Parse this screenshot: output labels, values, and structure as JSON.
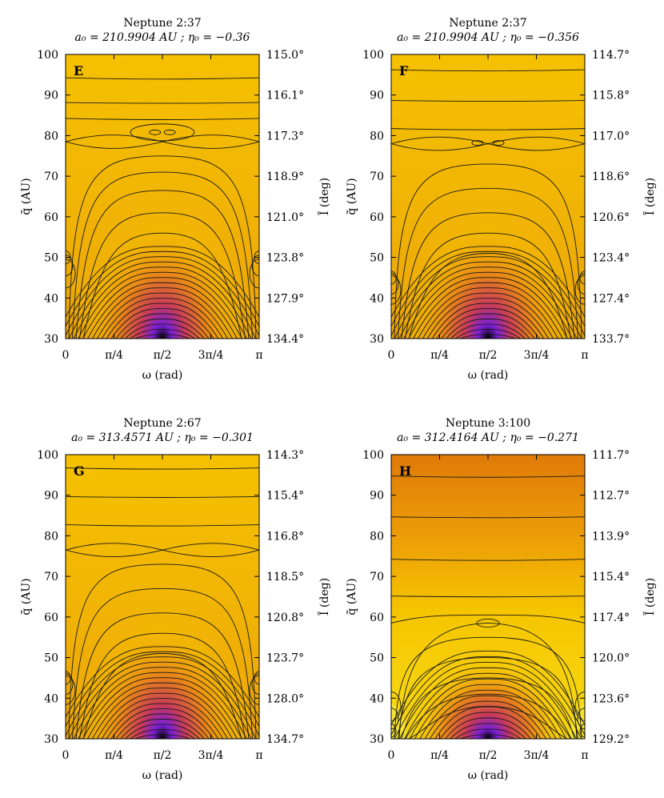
{
  "chart_data": [
    {
      "type": "heatmap",
      "panel_letter": "E",
      "title": "Neptune 2:37",
      "subtitle": "a₀ = 210.9904 AU ; η₀ = −0.36",
      "xlabel": "ω (rad)",
      "ylabel": "q̃ (AU)",
      "ylabel_right": "Ĩ (deg)",
      "xlim": [
        0,
        3.1416
      ],
      "ylim": [
        30,
        100
      ],
      "x_ticks": [
        0,
        0.7854,
        1.5708,
        2.3562,
        3.1416
      ],
      "x_tick_labels": [
        "0",
        "π/4",
        "π/2",
        "3π/4",
        "π"
      ],
      "y_ticks": [
        30,
        40,
        50,
        60,
        70,
        80,
        90,
        100
      ],
      "y_tick_labels": [
        "30",
        "40",
        "50",
        "60",
        "70",
        "80",
        "90",
        "100"
      ],
      "y_right_labels": [
        "134.4°",
        "127.9°",
        "123.8°",
        "121.0°",
        "118.9°",
        "117.3°",
        "116.1°",
        "115.0°"
      ],
      "colormap": [
        "#000000",
        "#7a1fd6",
        "#c83a5a",
        "#e8821a",
        "#f5c000",
        "#f5e010"
      ],
      "background": "yellow-top, orange-purple hump at omega = pi/2",
      "contour_levels_horizontal": [
        94,
        88,
        84
      ],
      "separatrix_q": 78.5,
      "resonance_islands": [
        {
          "omega": 1.45,
          "q": 80.8
        },
        {
          "omega": 1.69,
          "q": 80.8
        }
      ]
    },
    {
      "type": "heatmap",
      "panel_letter": "F",
      "title": "Neptune 2:37",
      "subtitle": "a₀ = 210.9904 AU ; η₀ = −0.356",
      "xlabel": "ω (rad)",
      "ylabel": "q̃ (AU)",
      "ylabel_right": "Ĩ (deg)",
      "xlim": [
        0,
        3.1416
      ],
      "ylim": [
        30,
        100
      ],
      "x_ticks": [
        0,
        0.7854,
        1.5708,
        2.3562,
        3.1416
      ],
      "x_tick_labels": [
        "0",
        "π/4",
        "π/2",
        "3π/4",
        "π"
      ],
      "y_ticks": [
        30,
        40,
        50,
        60,
        70,
        80,
        90,
        100
      ],
      "y_tick_labels": [
        "30",
        "40",
        "50",
        "60",
        "70",
        "80",
        "90",
        "100"
      ],
      "y_right_labels": [
        "133.7°",
        "127.4°",
        "123.4°",
        "120.6°",
        "118.6°",
        "117.0°",
        "115.8°",
        "114.7°"
      ],
      "colormap": [
        "#000000",
        "#7a1fd6",
        "#c83a5a",
        "#e8821a",
        "#f5c000",
        "#f5e010"
      ],
      "background": "yellow-top, orange-purple hump at omega = pi/2",
      "contour_levels_horizontal": [
        96,
        88.5,
        81.5
      ],
      "separatrix_q": 78,
      "resonance_islands": [
        {
          "omega": 1.4,
          "q": 78.2
        },
        {
          "omega": 1.74,
          "q": 78.2
        }
      ]
    },
    {
      "type": "heatmap",
      "panel_letter": "G",
      "title": "Neptune 2:67",
      "subtitle": "a₀ = 313.4571 AU ; η₀ = −0.301",
      "xlabel": "ω (rad)",
      "ylabel": "q̃ (AU)",
      "ylabel_right": "Ĩ (deg)",
      "xlim": [
        0,
        3.1416
      ],
      "ylim": [
        30,
        100
      ],
      "x_ticks": [
        0,
        0.7854,
        1.5708,
        2.3562,
        3.1416
      ],
      "x_tick_labels": [
        "0",
        "π/4",
        "π/2",
        "3π/4",
        "π"
      ],
      "y_ticks": [
        30,
        40,
        50,
        60,
        70,
        80,
        90,
        100
      ],
      "y_tick_labels": [
        "30",
        "40",
        "50",
        "60",
        "70",
        "80",
        "90",
        "100"
      ],
      "y_right_labels": [
        "134.7°",
        "128.0°",
        "123.7°",
        "120.8°",
        "118.5°",
        "116.8°",
        "115.4°",
        "114.3°"
      ],
      "colormap": [
        "#000000",
        "#7a1fd6",
        "#c83a5a",
        "#e8821a",
        "#f5c000",
        "#f5e010"
      ],
      "background": "yellow-top, orange-purple hump at omega = pi/2",
      "contour_levels_horizontal": [
        96.5,
        89.5,
        82.5
      ],
      "separatrix_q": 76.5,
      "resonance_islands": []
    },
    {
      "type": "heatmap",
      "panel_letter": "H",
      "title": "Neptune 3:100",
      "subtitle": "a₀ = 312.4164 AU ; η₀ = −0.271",
      "xlabel": "ω (rad)",
      "ylabel": "q̃ (AU)",
      "ylabel_right": "Ĩ (deg)",
      "xlim": [
        0,
        3.1416
      ],
      "ylim": [
        30,
        100
      ],
      "x_ticks": [
        0,
        0.7854,
        1.5708,
        2.3562,
        3.1416
      ],
      "x_tick_labels": [
        "0",
        "π/4",
        "π/2",
        "3π/4",
        "π"
      ],
      "y_ticks": [
        30,
        40,
        50,
        60,
        70,
        80,
        90,
        100
      ],
      "y_tick_labels": [
        "30",
        "40",
        "50",
        "60",
        "70",
        "80",
        "90",
        "100"
      ],
      "y_right_labels": [
        "129.2°",
        "123.6°",
        "120.0°",
        "117.4°",
        "115.4°",
        "113.9°",
        "112.7°",
        "111.7°"
      ],
      "colormap": [
        "#000000",
        "#7a1fd6",
        "#c83a5a",
        "#e8821a",
        "#f5c000",
        "#f5e010"
      ],
      "background": "orange-top, yellow middle, purple hump at omega = pi/2",
      "contour_levels_horizontal": [
        94.5,
        84.5,
        74,
        65
      ],
      "separatrix_q": 59.5,
      "resonance_islands": [
        {
          "omega": 1.5708,
          "q": 58.5
        }
      ]
    }
  ]
}
